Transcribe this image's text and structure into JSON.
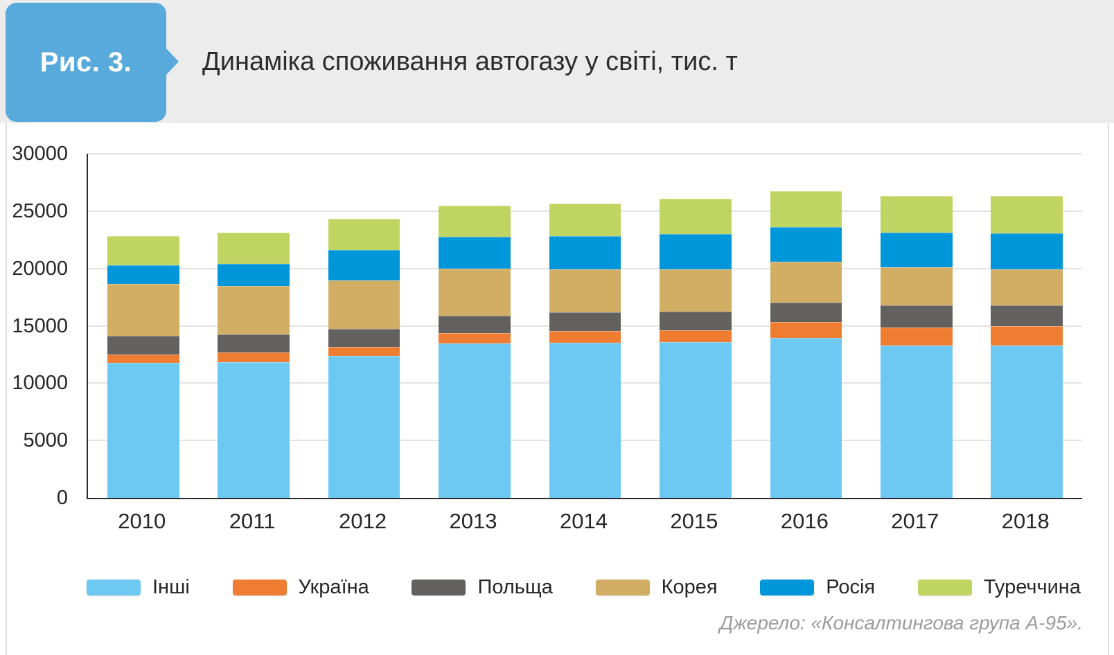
{
  "figure": {
    "label": "Рис. 3.",
    "title": "Динаміка споживання автогазу у світі, тис. т"
  },
  "source": "Джерело: «Консалтингова група А-95».",
  "colors": {
    "header_band": "#ececec",
    "figure_box": "#58a9dc",
    "axis": "#2b2b2b",
    "gridline": "#e3e3e3",
    "text": "#262626",
    "source_text": "#9b9b9b"
  },
  "chart_data": {
    "type": "bar",
    "stacked": true,
    "title": "Динаміка споживання автогазу у світі, тис. т",
    "xlabel": "",
    "ylabel": "",
    "ylim": [
      0,
      30000
    ],
    "yticks": [
      0,
      5000,
      10000,
      15000,
      20000,
      25000,
      30000
    ],
    "grid": true,
    "legend_position": "bottom",
    "categories": [
      "2010",
      "2011",
      "2012",
      "2013",
      "2014",
      "2015",
      "2016",
      "2017",
      "2018"
    ],
    "series": [
      {
        "name": "Інші",
        "color": "#6ec9f2",
        "values": [
          11800,
          11850,
          12350,
          13450,
          13550,
          13600,
          13950,
          13300,
          13300
        ]
      },
      {
        "name": "Україна",
        "color": "#ef7d31",
        "values": [
          700,
          800,
          800,
          900,
          1000,
          1000,
          1400,
          1550,
          1700
        ]
      },
      {
        "name": "Польща",
        "color": "#636060",
        "values": [
          1650,
          1600,
          1600,
          1500,
          1650,
          1650,
          1700,
          1950,
          1800
        ]
      },
      {
        "name": "Корея",
        "color": "#d1ae63",
        "values": [
          4500,
          4250,
          4200,
          4150,
          3700,
          3700,
          3550,
          3300,
          3150
        ]
      },
      {
        "name": "Росія",
        "color": "#0096da",
        "values": [
          1650,
          1900,
          2650,
          2750,
          2900,
          3050,
          3000,
          3000,
          3100
        ]
      },
      {
        "name": "Туреччина",
        "color": "#c0d462",
        "values": [
          2500,
          2700,
          2700,
          2700,
          2850,
          3100,
          3150,
          3200,
          3250
        ]
      }
    ],
    "totals": [
      22800,
      23100,
      24300,
      25450,
      25650,
      26100,
      26750,
      26300,
      26300
    ]
  }
}
